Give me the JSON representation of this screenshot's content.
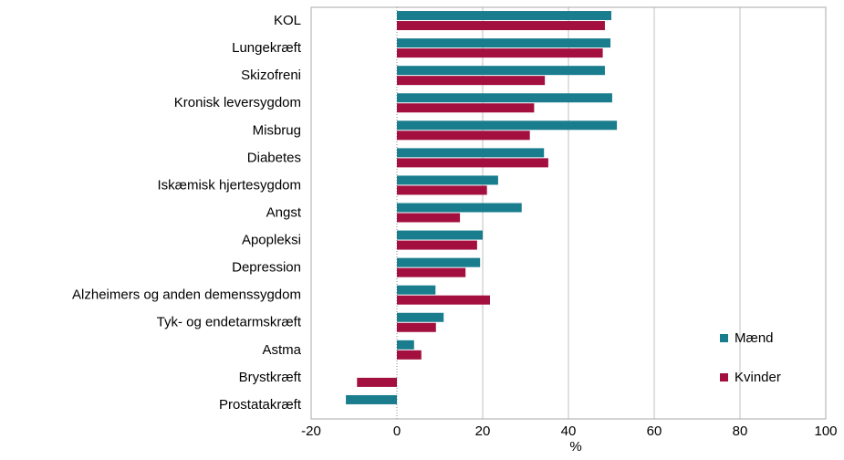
{
  "chart_data": {
    "type": "hbar",
    "x_label": "%",
    "categories": [
      "KOL",
      "Lungekræft",
      "Skizofreni",
      "Kronisk leversygdom",
      "Misbrug",
      "Diabetes",
      "Iskæmisk hjertesygdom",
      "Angst",
      "Apopleksi",
      "Depression",
      "Alzheimers og anden demenssygdom",
      "Tyk- og endetarmskræft",
      "Astma",
      "Brystkræft",
      "Prostatakræft"
    ],
    "series": [
      {
        "name": "Mænd",
        "color": "#1a7d8e",
        "values": [
          50,
          49.8,
          48.5,
          50.2,
          51.3,
          34.3,
          23.6,
          29.1,
          20,
          19.4,
          9,
          10.9,
          4,
          null,
          -11.9
        ]
      },
      {
        "name": "Kvinder",
        "color": "#a3103f",
        "values": [
          48.5,
          48,
          34.5,
          32,
          31,
          35.3,
          21,
          14.7,
          18.7,
          16,
          21.7,
          9.1,
          5.7,
          -9.3,
          null
        ]
      }
    ],
    "xlim": [
      -20,
      100
    ],
    "xticks": [
      -20,
      0,
      20,
      40,
      60,
      80,
      100
    ],
    "grid": true,
    "legend": "lower right"
  }
}
